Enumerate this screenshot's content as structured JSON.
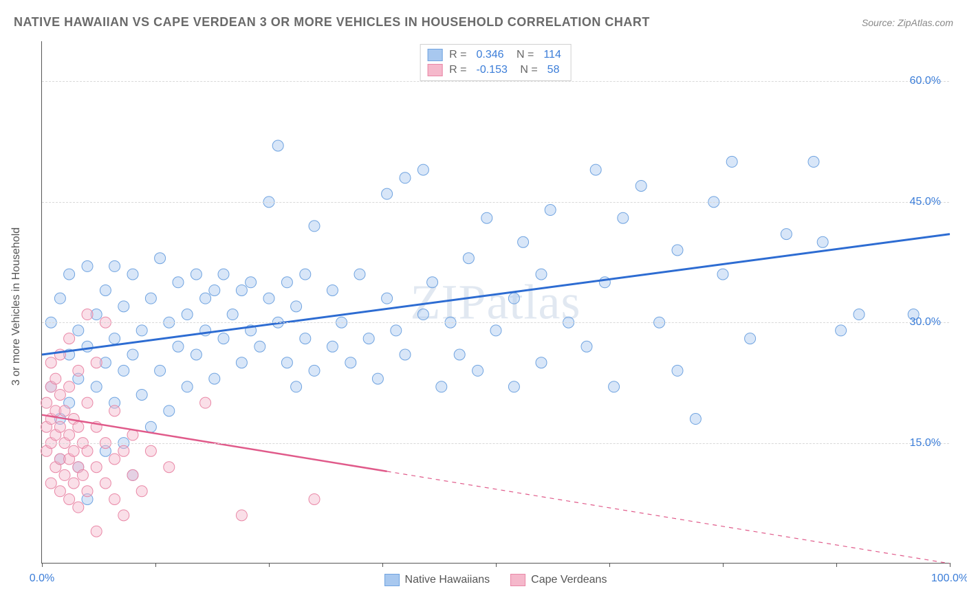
{
  "title": "NATIVE HAWAIIAN VS CAPE VERDEAN 3 OR MORE VEHICLES IN HOUSEHOLD CORRELATION CHART",
  "source_label": "Source: ZipAtlas.com",
  "watermark": "ZIPatlas",
  "y_axis_title": "3 or more Vehicles in Household",
  "chart": {
    "type": "scatter",
    "xlim": [
      0,
      100
    ],
    "ylim": [
      0,
      65
    ],
    "x_ticks": [
      0,
      12.5,
      25,
      37.5,
      50,
      62.5,
      75,
      87.5,
      100
    ],
    "x_tick_labels": {
      "0": "0.0%",
      "100": "100.0%"
    },
    "y_gridlines": [
      15,
      30,
      45,
      60
    ],
    "y_tick_labels": {
      "15": "15.0%",
      "30": "30.0%",
      "45": "45.0%",
      "60": "60.0%"
    },
    "background": "#ffffff",
    "grid_color": "#d8d8d8",
    "marker_radius": 8,
    "marker_opacity": 0.45,
    "series": [
      {
        "name": "Native Hawaiians",
        "color_fill": "#a8c8ef",
        "color_stroke": "#6fa3e0",
        "R": "0.346",
        "N": "114",
        "trend": {
          "x1": 0,
          "y1": 26,
          "x2": 100,
          "y2": 41,
          "color": "#2d6cd2",
          "width": 3,
          "solid_until_x": 100
        },
        "points": [
          [
            1,
            22
          ],
          [
            1,
            30
          ],
          [
            2,
            13
          ],
          [
            2,
            18
          ],
          [
            2,
            33
          ],
          [
            3,
            20
          ],
          [
            3,
            26
          ],
          [
            3,
            36
          ],
          [
            4,
            12
          ],
          [
            4,
            23
          ],
          [
            4,
            29
          ],
          [
            5,
            8
          ],
          [
            5,
            27
          ],
          [
            5,
            37
          ],
          [
            6,
            22
          ],
          [
            6,
            31
          ],
          [
            7,
            14
          ],
          [
            7,
            25
          ],
          [
            7,
            34
          ],
          [
            8,
            20
          ],
          [
            8,
            28
          ],
          [
            8,
            37
          ],
          [
            9,
            15
          ],
          [
            9,
            24
          ],
          [
            9,
            32
          ],
          [
            10,
            11
          ],
          [
            10,
            26
          ],
          [
            10,
            36
          ],
          [
            11,
            21
          ],
          [
            11,
            29
          ],
          [
            12,
            17
          ],
          [
            12,
            33
          ],
          [
            13,
            24
          ],
          [
            13,
            38
          ],
          [
            14,
            19
          ],
          [
            14,
            30
          ],
          [
            15,
            27
          ],
          [
            15,
            35
          ],
          [
            16,
            22
          ],
          [
            16,
            31
          ],
          [
            17,
            26
          ],
          [
            17,
            36
          ],
          [
            18,
            29
          ],
          [
            18,
            33
          ],
          [
            19,
            23
          ],
          [
            19,
            34
          ],
          [
            20,
            28
          ],
          [
            20,
            36
          ],
          [
            21,
            31
          ],
          [
            22,
            25
          ],
          [
            22,
            34
          ],
          [
            23,
            29
          ],
          [
            23,
            35
          ],
          [
            24,
            27
          ],
          [
            25,
            33
          ],
          [
            25,
            45
          ],
          [
            26,
            30
          ],
          [
            26,
            52
          ],
          [
            27,
            25
          ],
          [
            27,
            35
          ],
          [
            28,
            22
          ],
          [
            28,
            32
          ],
          [
            29,
            28
          ],
          [
            29,
            36
          ],
          [
            30,
            24
          ],
          [
            30,
            42
          ],
          [
            32,
            27
          ],
          [
            32,
            34
          ],
          [
            33,
            30
          ],
          [
            34,
            25
          ],
          [
            35,
            36
          ],
          [
            36,
            28
          ],
          [
            37,
            23
          ],
          [
            38,
            33
          ],
          [
            38,
            46
          ],
          [
            39,
            29
          ],
          [
            40,
            26
          ],
          [
            40,
            48
          ],
          [
            42,
            31
          ],
          [
            42,
            49
          ],
          [
            43,
            35
          ],
          [
            44,
            22
          ],
          [
            45,
            30
          ],
          [
            46,
            26
          ],
          [
            47,
            38
          ],
          [
            48,
            24
          ],
          [
            49,
            43
          ],
          [
            50,
            29
          ],
          [
            52,
            22
          ],
          [
            52,
            33
          ],
          [
            53,
            40
          ],
          [
            55,
            25
          ],
          [
            55,
            36
          ],
          [
            56,
            44
          ],
          [
            58,
            30
          ],
          [
            60,
            27
          ],
          [
            61,
            49
          ],
          [
            62,
            35
          ],
          [
            63,
            22
          ],
          [
            64,
            43
          ],
          [
            66,
            47
          ],
          [
            68,
            30
          ],
          [
            70,
            24
          ],
          [
            70,
            39
          ],
          [
            72,
            18
          ],
          [
            74,
            45
          ],
          [
            75,
            36
          ],
          [
            76,
            50
          ],
          [
            78,
            28
          ],
          [
            82,
            41
          ],
          [
            85,
            50
          ],
          [
            86,
            40
          ],
          [
            88,
            29
          ],
          [
            90,
            31
          ],
          [
            96,
            31
          ]
        ]
      },
      {
        "name": "Cape Verdeans",
        "color_fill": "#f5b8cb",
        "color_stroke": "#e987a6",
        "R": "-0.153",
        "N": "58",
        "trend": {
          "x1": 0,
          "y1": 18.5,
          "x2": 100,
          "y2": 0,
          "color": "#e05a8a",
          "width": 2.5,
          "solid_until_x": 38
        },
        "points": [
          [
            0.5,
            17
          ],
          [
            0.5,
            14
          ],
          [
            0.5,
            20
          ],
          [
            1,
            10
          ],
          [
            1,
            15
          ],
          [
            1,
            18
          ],
          [
            1,
            22
          ],
          [
            1,
            25
          ],
          [
            1.5,
            12
          ],
          [
            1.5,
            16
          ],
          [
            1.5,
            19
          ],
          [
            1.5,
            23
          ],
          [
            2,
            9
          ],
          [
            2,
            13
          ],
          [
            2,
            17
          ],
          [
            2,
            21
          ],
          [
            2,
            26
          ],
          [
            2.5,
            11
          ],
          [
            2.5,
            15
          ],
          [
            2.5,
            19
          ],
          [
            3,
            8
          ],
          [
            3,
            13
          ],
          [
            3,
            16
          ],
          [
            3,
            22
          ],
          [
            3,
            28
          ],
          [
            3.5,
            10
          ],
          [
            3.5,
            14
          ],
          [
            3.5,
            18
          ],
          [
            4,
            7
          ],
          [
            4,
            12
          ],
          [
            4,
            17
          ],
          [
            4,
            24
          ],
          [
            4.5,
            11
          ],
          [
            4.5,
            15
          ],
          [
            5,
            9
          ],
          [
            5,
            14
          ],
          [
            5,
            20
          ],
          [
            5,
            31
          ],
          [
            6,
            4
          ],
          [
            6,
            12
          ],
          [
            6,
            17
          ],
          [
            6,
            25
          ],
          [
            7,
            10
          ],
          [
            7,
            15
          ],
          [
            7,
            30
          ],
          [
            8,
            8
          ],
          [
            8,
            13
          ],
          [
            8,
            19
          ],
          [
            9,
            6
          ],
          [
            9,
            14
          ],
          [
            10,
            11
          ],
          [
            10,
            16
          ],
          [
            11,
            9
          ],
          [
            12,
            14
          ],
          [
            14,
            12
          ],
          [
            18,
            20
          ],
          [
            22,
            6
          ],
          [
            30,
            8
          ]
        ]
      }
    ]
  },
  "stats_legend": {
    "rows": [
      {
        "swatch_fill": "#a8c8ef",
        "swatch_stroke": "#6fa3e0",
        "R": "0.346",
        "N": "114"
      },
      {
        "swatch_fill": "#f5b8cb",
        "swatch_stroke": "#e987a6",
        "R": "-0.153",
        "N": "58"
      }
    ]
  },
  "bottom_legend": [
    {
      "swatch_fill": "#a8c8ef",
      "swatch_stroke": "#6fa3e0",
      "label": "Native Hawaiians"
    },
    {
      "swatch_fill": "#f5b8cb",
      "swatch_stroke": "#e987a6",
      "label": "Cape Verdeans"
    }
  ]
}
